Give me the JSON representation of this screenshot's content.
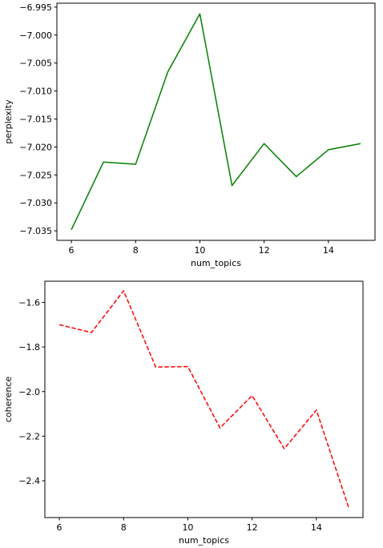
{
  "chart_data": [
    {
      "type": "line",
      "xlabel": "num_topics",
      "ylabel": "perplexity",
      "x": [
        6,
        7,
        8,
        9,
        10,
        11,
        12,
        13,
        14,
        15
      ],
      "series": [
        {
          "values": [
            -7.0348,
            -7.0227,
            -7.0231,
            -7.0066,
            -6.9962,
            -7.0269,
            -7.0194,
            -7.0253,
            -7.0205,
            -7.0194
          ],
          "color": "#008000",
          "line_style": "solid"
        }
      ],
      "xlim": [
        5.55,
        15.45
      ],
      "ylim": [
        -7.0367,
        -6.9943
      ],
      "xticks": [
        6,
        8,
        10,
        12,
        14
      ],
      "xtick_labels": [
        "6",
        "8",
        "10",
        "12",
        "14"
      ],
      "yticks": [
        -7.035,
        -7.03,
        -7.025,
        -7.02,
        -7.015,
        -7.01,
        -7.005,
        -7.0,
        -6.995
      ],
      "ytick_labels": [
        "−7.035",
        "−7.030",
        "−7.025",
        "−7.020",
        "−7.015",
        "−7.010",
        "−7.005",
        "−7.000",
        "−6.995"
      ],
      "grid": false
    },
    {
      "type": "line",
      "xlabel": "num_topics",
      "ylabel": "coherence",
      "x": [
        6,
        7,
        8,
        9,
        10,
        11,
        12,
        13,
        14,
        15
      ],
      "series": [
        {
          "values": [
            -1.7,
            -1.735,
            -1.548,
            -1.89,
            -1.888,
            -2.163,
            -2.018,
            -2.256,
            -2.083,
            -2.518
          ],
          "color": "#ff0000",
          "line_style": "dashed"
        }
      ],
      "xlim": [
        5.55,
        15.45
      ],
      "ylim": [
        -2.565,
        -1.505
      ],
      "xticks": [
        6,
        8,
        10,
        12,
        14
      ],
      "xtick_labels": [
        "6",
        "8",
        "10",
        "12",
        "14"
      ],
      "yticks": [
        -2.4,
        -2.2,
        -2.0,
        -1.8,
        -1.6
      ],
      "ytick_labels": [
        "−2.4",
        "−2.2",
        "−2.0",
        "−1.8",
        "−1.6"
      ],
      "grid": false
    }
  ]
}
